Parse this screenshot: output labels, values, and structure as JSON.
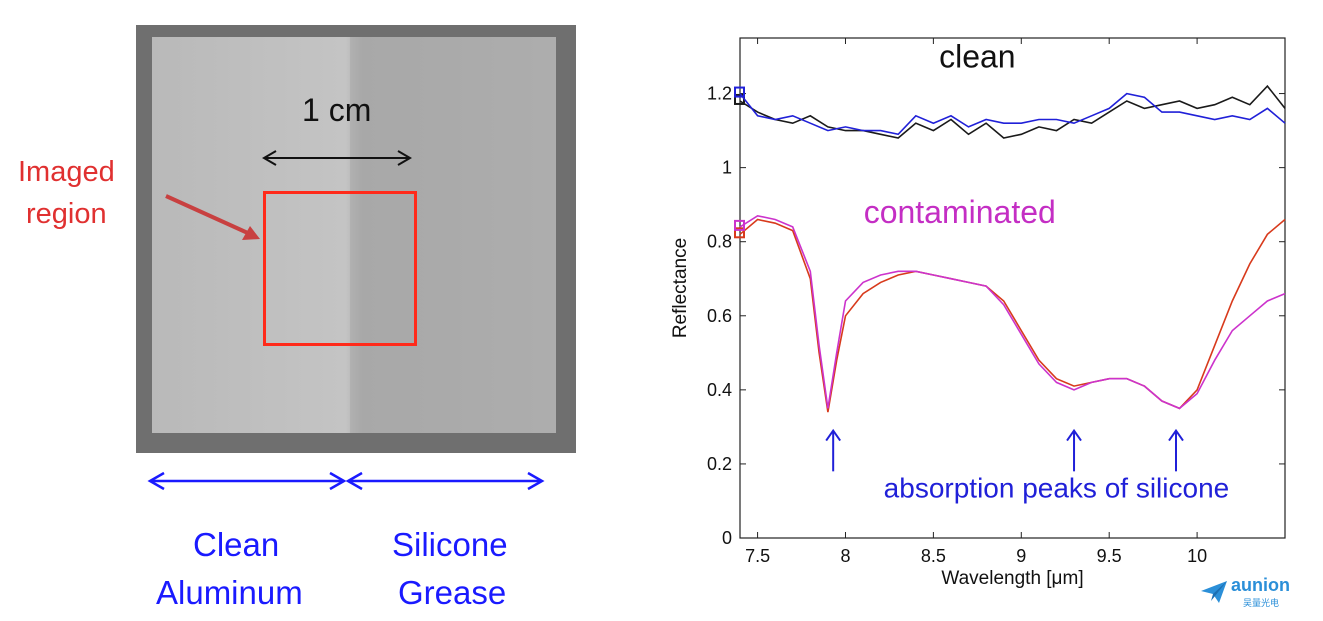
{
  "photo": {
    "scale_label": "1 cm",
    "imaged_region_line1": "Imaged",
    "imaged_region_line2": "region",
    "left_label_line1": "Clean",
    "left_label_line2": "Aluminum",
    "right_label_line1": "Silicone",
    "right_label_line2": "Grease",
    "colors": {
      "region_box": "#ff2a1a",
      "region_text": "#e03030",
      "arrow_blue": "#1a1aff"
    }
  },
  "logo": {
    "name": "aunion",
    "subtitle": "吴量光电",
    "icon": "paper-plane-icon",
    "color": "#2b8fd8"
  },
  "chart_data": {
    "type": "line",
    "xlabel": "Wavelength [μm]",
    "ylabel": "Reflectance",
    "xlim": [
      7.4,
      10.5
    ],
    "ylim": [
      0,
      1.35
    ],
    "xticks": [
      7.5,
      8,
      8.5,
      9,
      9.5,
      10
    ],
    "xtick_labels": [
      "7.5",
      "8",
      "8.5",
      "9",
      "9.5",
      "10"
    ],
    "yticks": [
      0,
      0.2,
      0.4,
      0.6,
      0.8,
      1,
      1.2
    ],
    "ytick_labels": [
      "0",
      "0.2",
      "0.4",
      "0.6",
      "0.8",
      "1",
      "1.2"
    ],
    "grid": false,
    "annotations": {
      "clean": "clean",
      "contaminated": "contaminated",
      "absorption": "absorption peaks of silicone",
      "arrow_x": [
        7.93,
        9.3,
        9.88
      ]
    },
    "series": [
      {
        "color": "#1a1a1a",
        "x": [
          7.4,
          7.5,
          7.6,
          7.7,
          7.8,
          7.9,
          8.0,
          8.1,
          8.2,
          8.3,
          8.4,
          8.5,
          8.6,
          8.7,
          8.8,
          8.9,
          9.0,
          9.1,
          9.2,
          9.3,
          9.4,
          9.5,
          9.6,
          9.7,
          9.8,
          9.9,
          10.0,
          10.1,
          10.2,
          10.3,
          10.4,
          10.5
        ],
        "y": [
          1.18,
          1.15,
          1.13,
          1.12,
          1.14,
          1.11,
          1.1,
          1.1,
          1.09,
          1.08,
          1.12,
          1.1,
          1.13,
          1.09,
          1.12,
          1.08,
          1.09,
          1.11,
          1.1,
          1.13,
          1.12,
          1.15,
          1.18,
          1.16,
          1.17,
          1.18,
          1.16,
          1.17,
          1.19,
          1.17,
          1.22,
          1.16
        ]
      },
      {
        "color": "#2020d8",
        "x": [
          7.4,
          7.5,
          7.6,
          7.7,
          7.8,
          7.9,
          8.0,
          8.1,
          8.2,
          8.3,
          8.4,
          8.5,
          8.6,
          8.7,
          8.8,
          8.9,
          9.0,
          9.1,
          9.2,
          9.3,
          9.4,
          9.5,
          9.6,
          9.7,
          9.8,
          9.9,
          10.0,
          10.1,
          10.2,
          10.3,
          10.4,
          10.5
        ],
        "y": [
          1.2,
          1.14,
          1.13,
          1.14,
          1.12,
          1.1,
          1.11,
          1.1,
          1.1,
          1.09,
          1.14,
          1.12,
          1.14,
          1.11,
          1.13,
          1.12,
          1.12,
          1.13,
          1.13,
          1.12,
          1.14,
          1.16,
          1.2,
          1.19,
          1.15,
          1.15,
          1.14,
          1.13,
          1.14,
          1.13,
          1.16,
          1.12
        ]
      },
      {
        "color": "#d83a1c",
        "x": [
          7.4,
          7.5,
          7.6,
          7.7,
          7.8,
          7.85,
          7.9,
          7.95,
          8.0,
          8.1,
          8.2,
          8.3,
          8.4,
          8.5,
          8.6,
          8.7,
          8.8,
          8.9,
          9.0,
          9.1,
          9.2,
          9.3,
          9.4,
          9.5,
          9.6,
          9.7,
          9.8,
          9.9,
          10.0,
          10.1,
          10.2,
          10.3,
          10.4,
          10.5
        ],
        "y": [
          0.82,
          0.86,
          0.85,
          0.83,
          0.7,
          0.5,
          0.34,
          0.48,
          0.6,
          0.66,
          0.69,
          0.71,
          0.72,
          0.71,
          0.7,
          0.69,
          0.68,
          0.64,
          0.56,
          0.48,
          0.43,
          0.41,
          0.42,
          0.43,
          0.43,
          0.41,
          0.37,
          0.35,
          0.4,
          0.52,
          0.64,
          0.74,
          0.82,
          0.86
        ]
      },
      {
        "color": "#cc33cc",
        "x": [
          7.4,
          7.5,
          7.6,
          7.7,
          7.8,
          7.85,
          7.9,
          7.95,
          8.0,
          8.1,
          8.2,
          8.3,
          8.4,
          8.5,
          8.6,
          8.7,
          8.8,
          8.9,
          9.0,
          9.1,
          9.2,
          9.3,
          9.4,
          9.5,
          9.6,
          9.7,
          9.8,
          9.9,
          10.0,
          10.1,
          10.2,
          10.3,
          10.4,
          10.5
        ],
        "y": [
          0.84,
          0.87,
          0.86,
          0.84,
          0.72,
          0.52,
          0.35,
          0.5,
          0.64,
          0.69,
          0.71,
          0.72,
          0.72,
          0.71,
          0.7,
          0.69,
          0.68,
          0.63,
          0.55,
          0.47,
          0.42,
          0.4,
          0.42,
          0.43,
          0.43,
          0.41,
          0.37,
          0.35,
          0.39,
          0.48,
          0.56,
          0.6,
          0.64,
          0.66
        ]
      }
    ]
  }
}
